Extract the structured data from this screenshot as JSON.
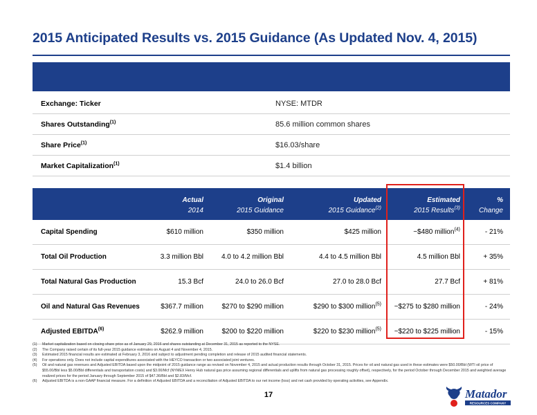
{
  "title": "2015 Anticipated Results vs. 2015 Guidance (As Updated Nov. 4, 2015)",
  "info": [
    {
      "label": "Exchange: Ticker",
      "sup": "",
      "value": "NYSE: MTDR"
    },
    {
      "label": "Shares Outstanding",
      "sup": "(1)",
      "value": "85.6 million common shares"
    },
    {
      "label": "Share Price",
      "sup": "(1)",
      "value": "$16.03/share"
    },
    {
      "label": "Market Capitalization",
      "sup": "(1)",
      "value": "$1.4 billion"
    }
  ],
  "columns": [
    {
      "l1": "Actual",
      "l2": "2014",
      "sup": ""
    },
    {
      "l1": "Original",
      "l2": "2015 Guidance",
      "sup": ""
    },
    {
      "l1": "Updated",
      "l2": "2015 Guidance",
      "sup": "(2)"
    },
    {
      "l1": "Estimated",
      "l2": "2015 Results",
      "sup": "(3)"
    },
    {
      "l1": "%",
      "l2": "Change",
      "sup": ""
    }
  ],
  "rows": [
    {
      "label": "Capital Spending",
      "label_sup": "",
      "actual": "$610 million",
      "original": "$350 million",
      "updated": "$425 million",
      "updated_sup": "",
      "estimated": "~$480 million",
      "estimated_sup": "(4)",
      "change": "- 21%"
    },
    {
      "label": "Total Oil Production",
      "label_sup": "",
      "actual": "3.3 million Bbl",
      "original": "4.0 to 4.2 million Bbl",
      "updated": "4.4 to 4.5 million Bbl",
      "updated_sup": "",
      "estimated": "4.5 million Bbl",
      "estimated_sup": "",
      "change": "+ 35%"
    },
    {
      "label": "Total Natural Gas Production",
      "label_sup": "",
      "actual": "15.3 Bcf",
      "original": "24.0 to 26.0 Bcf",
      "updated": "27.0 to 28.0 Bcf",
      "updated_sup": "",
      "estimated": "27.7 Bcf",
      "estimated_sup": "",
      "change": "+ 81%"
    },
    {
      "label": "Oil and Natural Gas Revenues",
      "label_sup": "",
      "actual": "$367.7 million",
      "original": "$270 to $290 million",
      "updated": "$290 to $300 million",
      "updated_sup": "(5)",
      "estimated": "~$275 to $280 million",
      "estimated_sup": "",
      "change": "- 24%"
    },
    {
      "label": "Adjusted EBITDA",
      "label_sup": "(6)",
      "actual": "$262.9 million",
      "original": "$200 to $220 million",
      "updated": "$220 to $230 million",
      "updated_sup": "(5)",
      "estimated": "~$220 to $225 million",
      "estimated_sup": "",
      "change": "- 15%"
    }
  ],
  "footnotes": [
    {
      "num": "(1)",
      "text": "Market capitalization based on closing share price as of January 29, 2016 and shares outstanding at December 31, 2015 as reported to the NYSE."
    },
    {
      "num": "(2)",
      "text": "The Company raised certain of its full-year 2015 guidance estimates on August 4 and November 4, 2015."
    },
    {
      "num": "(3)",
      "text": "Estimated 2015 financial results are estimated at February 3, 2016 and subject to adjustment pending completion and release of 2015 audited financial statements."
    },
    {
      "num": "(4)",
      "text": "For operations only. Does not include capital expenditures associated with the HEYCO transaction or two associated joint ventures."
    },
    {
      "num": "(5)",
      "text": "Oil and natural gas revenues and Adjusted EBITDA based upon the midpoint of 2015 guidance range as revised on November 4, 2015 and actual production results through October 31, 2015. Prices for oil and natural gas used in these estimates were $50.00/Bbl (WTI oil price of $55.00/Bbl less $5.00/Bbl differentials and transportation costs) and $3.00/Mcf (NYMEX Henry Hub natural gas price assuming regional differentials and uplifts from natural gas processing roughly offset), respectively, for the period October through December 2015 and weighted average realized prices for the period January through September 2015 of $47.36/Bbl and $2.83/Mcf."
    },
    {
      "num": "(6)",
      "text": "Adjusted EBITDA is a non-GAAP financial measure. For a definition of Adjusted EBITDA and a reconciliation of Adjusted EBITDA to our net income (loss) and net cash provided by operating activities, see Appendix."
    }
  ],
  "page_number": "17",
  "logo": {
    "name": "Matador",
    "tagline": "RESOURCES COMPANY",
    "colors": {
      "brand": "#1d3f8a",
      "accent": "#e0201b"
    }
  },
  "colors": {
    "header": "#1d3f8a",
    "highlight": "#e0201b"
  }
}
